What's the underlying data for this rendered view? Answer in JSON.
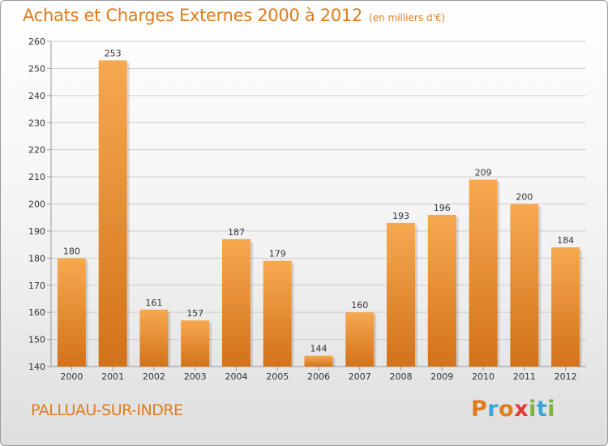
{
  "header": {
    "title": "Achats et Charges Externes 2000 à 2012",
    "subtitle": "(en milliers d'€)"
  },
  "footer": {
    "place": "PALLUAU-SUR-INDRE",
    "logo_text": "Proxiti",
    "logo_colors": [
      "#e07b1a",
      "#3aa7d8",
      "#e07b1a",
      "#e53935",
      "#7cb342",
      "#3aa7d8",
      "#7cb342"
    ]
  },
  "chart_data": {
    "type": "bar",
    "title": "Achats et Charges Externes 2000 à 2012",
    "subtitle": "(en milliers d'€)",
    "xlabel": "",
    "ylabel": "",
    "categories": [
      "2000",
      "2001",
      "2002",
      "2003",
      "2004",
      "2005",
      "2006",
      "2007",
      "2008",
      "2009",
      "2010",
      "2011",
      "2012"
    ],
    "values": [
      180,
      253,
      161,
      157,
      187,
      179,
      144,
      160,
      193,
      196,
      209,
      200,
      184
    ],
    "ylim": [
      140,
      260
    ],
    "yticks": [
      140,
      150,
      160,
      170,
      180,
      190,
      200,
      210,
      220,
      230,
      240,
      250,
      260
    ],
    "grid": true,
    "colors": {
      "bar_top": "#f7a94f",
      "bar_bottom": "#d2721a",
      "grid": "#cccccc",
      "accent": "#e07b1a"
    }
  }
}
